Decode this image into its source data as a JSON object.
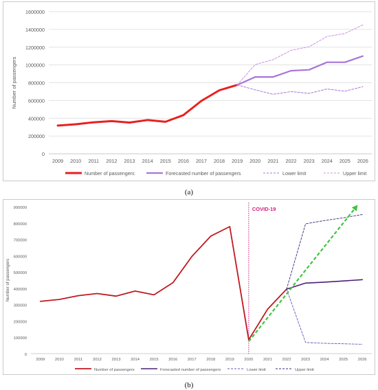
{
  "chart_data": [
    {
      "type": "line",
      "caption": "(a)",
      "ylabel": "Number of passengers",
      "ylim": [
        0,
        1600000
      ],
      "yticks": [
        0,
        200000,
        400000,
        600000,
        800000,
        1000000,
        1200000,
        1400000,
        1600000
      ],
      "ytick_labels": [
        "0",
        "200000",
        "400000",
        "600000",
        "800000",
        "1000000",
        "1200000",
        "1400000",
        "1600000"
      ],
      "categories": [
        "2009",
        "2010",
        "2011",
        "2012",
        "2013",
        "2014",
        "2015",
        "2016",
        "2017",
        "2018",
        "2019",
        "2020",
        "2021",
        "2022",
        "2023",
        "2024",
        "2025",
        "2026"
      ],
      "grid": true,
      "legend_position": "bottom",
      "series": [
        {
          "name": "Number of passengers",
          "color": "#e8201f",
          "style": "solid",
          "width": 3,
          "values": [
            318000,
            332000,
            355000,
            368000,
            352000,
            380000,
            360000,
            435000,
            595000,
            715000,
            775000,
            null,
            null,
            null,
            null,
            null,
            null,
            null
          ]
        },
        {
          "name": "Forecasted number of passengers",
          "color": "#a874d8",
          "style": "solid",
          "width": 2.2,
          "values": [
            null,
            null,
            null,
            null,
            null,
            null,
            null,
            null,
            null,
            null,
            775000,
            865000,
            865000,
            935000,
            945000,
            1030000,
            1030000,
            1100000
          ]
        },
        {
          "name": "Lower limit",
          "color": "#a874d8",
          "style": "dashed",
          "width": 1,
          "values": [
            null,
            null,
            null,
            null,
            null,
            null,
            null,
            null,
            null,
            null,
            775000,
            720000,
            670000,
            700000,
            680000,
            730000,
            705000,
            755000
          ]
        },
        {
          "name": "Upper limit",
          "color": "#c890e6",
          "style": "dashed",
          "width": 1,
          "values": [
            null,
            null,
            null,
            null,
            null,
            null,
            null,
            null,
            null,
            null,
            775000,
            1005000,
            1060000,
            1165000,
            1205000,
            1320000,
            1355000,
            1450000
          ]
        }
      ]
    },
    {
      "type": "line",
      "caption": "(b)",
      "ylabel": "Number of passengers",
      "ylim": [
        0,
        900000
      ],
      "yticks": [
        0,
        100000,
        200000,
        300000,
        400000,
        500000,
        600000,
        700000,
        800000,
        900000
      ],
      "ytick_labels": [
        "0",
        "100000",
        "200000",
        "300000",
        "400000",
        "500000",
        "600000",
        "700000",
        "800000",
        "900000"
      ],
      "categories": [
        "2009",
        "2010",
        "2011",
        "2012",
        "2013",
        "2014",
        "2015",
        "2016",
        "2017",
        "2018",
        "2019",
        "2020",
        "2021",
        "2022",
        "2023",
        "2024",
        "2025",
        "2026"
      ],
      "grid": false,
      "legend_position": "bottom",
      "annotation": {
        "text": "COVID-19",
        "x": "2020",
        "color": "#d6197a"
      },
      "trend_arrow": {
        "color": "#3ec43e",
        "from": [
          "2020",
          75000
        ],
        "to": [
          "2025.75",
          910000
        ]
      },
      "series": [
        {
          "name": "Number of passengers",
          "color": "#c0181f",
          "style": "solid",
          "width": 1.8,
          "values": [
            320000,
            332000,
            355000,
            368000,
            352000,
            383000,
            360000,
            435000,
            595000,
            720000,
            778000,
            85000,
            272000,
            395000,
            null,
            null,
            null,
            null
          ]
        },
        {
          "name": "Forecasted number of passengers",
          "color": "#4b1f74",
          "style": "solid",
          "width": 1.6,
          "values": [
            null,
            null,
            null,
            null,
            null,
            null,
            null,
            null,
            null,
            null,
            null,
            null,
            null,
            395000,
            432000,
            438000,
            445000,
            453000
          ]
        },
        {
          "name": "Lower limit",
          "color": "#6a55b8",
          "style": "dashed",
          "width": 0.9,
          "values": [
            null,
            null,
            null,
            null,
            null,
            null,
            null,
            null,
            null,
            null,
            null,
            null,
            null,
            395000,
            68000,
            63000,
            60000,
            57000
          ]
        },
        {
          "name": "Upper limit",
          "color": "#3a2a7a",
          "style": "dashed",
          "width": 0.9,
          "values": [
            null,
            null,
            null,
            null,
            null,
            null,
            null,
            null,
            null,
            null,
            null,
            null,
            null,
            395000,
            795000,
            815000,
            832000,
            852000
          ]
        }
      ]
    }
  ]
}
